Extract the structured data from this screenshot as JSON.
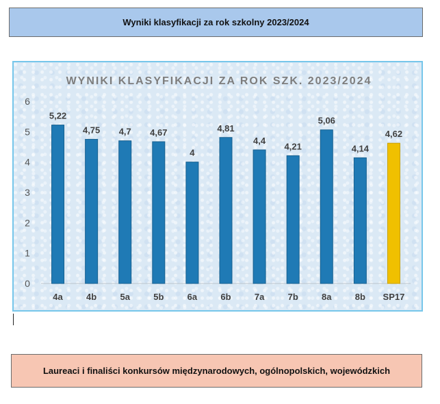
{
  "header": {
    "title": "Wyniki klasyfikacji za rok szkolny 2023/2024"
  },
  "footer": {
    "title": "Laureaci i finaliści konkursów międzynarodowych, ogólnopolskich, wojewódzkich"
  },
  "chart_data": {
    "type": "bar",
    "title": "WYNIKI KLASYFIKACJI ZA ROK SZK. 2023/2024",
    "categories": [
      "4a",
      "4b",
      "5a",
      "5b",
      "6a",
      "6b",
      "7a",
      "7b",
      "8a",
      "8b",
      "SP17"
    ],
    "values": [
      5.22,
      4.75,
      4.7,
      4.67,
      4,
      4.81,
      4.4,
      4.21,
      5.06,
      4.14,
      4.62
    ],
    "value_labels": [
      "5,22",
      "4,75",
      "4,7",
      "4,67",
      "4",
      "4,81",
      "4,4",
      "4,21",
      "5,06",
      "4,14",
      "4,62"
    ],
    "ylim": [
      0,
      6
    ],
    "yticks": [
      0,
      1,
      2,
      3,
      4,
      5,
      6
    ],
    "grid": false,
    "colors": {
      "bar": "#1f7ab5",
      "highlight": "#f0c000"
    },
    "highlight_category": "SP17"
  }
}
